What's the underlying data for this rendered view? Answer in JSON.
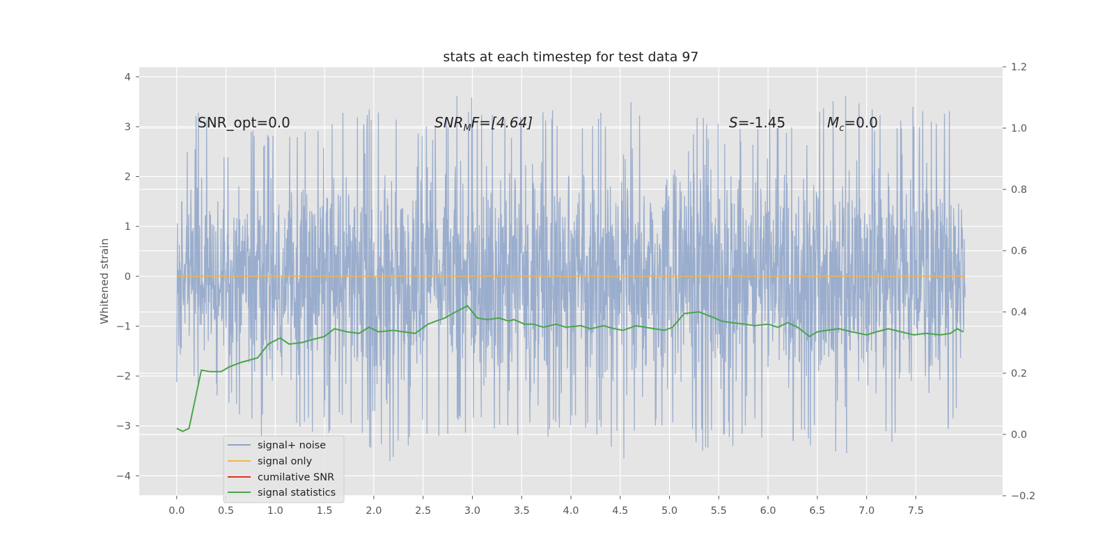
{
  "chart_data": {
    "type": "line",
    "title": "stats at each timestep for test data 97",
    "xlabel": "",
    "ylabel": "Whitened strain",
    "y2label": "",
    "xlim": [
      -0.38,
      8.38
    ],
    "ylim": [
      -4.4,
      4.2
    ],
    "y2lim": [
      -0.2,
      1.2
    ],
    "x_ticks": [
      "0.0",
      "0.5",
      "1.0",
      "1.5",
      "2.0",
      "2.5",
      "3.0",
      "3.5",
      "4.0",
      "4.5",
      "5.0",
      "5.5",
      "6.0",
      "6.5",
      "7.0",
      "7.5"
    ],
    "y_ticks": [
      "4",
      "3",
      "2",
      "1",
      "0",
      "−1",
      "−2",
      "−3",
      "−4"
    ],
    "y2_ticks": [
      "1.2",
      "1.0",
      "0.8",
      "0.6",
      "0.4",
      "0.2",
      "0.0",
      "−0.2"
    ],
    "grid": true,
    "legend_position": "lower-left",
    "colors": {
      "signal_noise": "#8da3c9",
      "signal_only": "#f0b54a",
      "cumulative_snr": "#e0301e",
      "signal_statistics": "#4aa44a",
      "axes_bg": "#e5e5e5"
    },
    "annotations": {
      "snr_opt": "SNR_opt=0.0",
      "snr_mf_main": "SNR",
      "snr_mf_sub": "M",
      "snr_mf_rest": "F=[4.64]",
      "s_main": "S",
      "s_rest": "=-1.45",
      "mc_main": "M",
      "mc_sub": "c",
      "mc_rest": "=0.0"
    },
    "series": [
      {
        "name": "signal+ noise",
        "axis": "left",
        "x_range": [
          0.0,
          8.0
        ],
        "envelope_upper": [
          [
            0.0,
            1.9
          ],
          [
            0.2,
            3.6
          ],
          [
            0.5,
            2.6
          ],
          [
            0.8,
            3.1
          ],
          [
            1.0,
            2.9
          ],
          [
            1.4,
            3.3
          ],
          [
            1.8,
            3.5
          ],
          [
            2.2,
            3.2
          ],
          [
            2.6,
            3.1
          ],
          [
            2.9,
            3.8
          ],
          [
            3.2,
            3.3
          ],
          [
            3.5,
            3.2
          ],
          [
            4.0,
            3.5
          ],
          [
            4.3,
            3.3
          ],
          [
            4.7,
            3.7
          ],
          [
            4.8,
            3.0
          ],
          [
            5.2,
            3.3
          ],
          [
            5.6,
            3.0
          ],
          [
            6.0,
            3.5
          ],
          [
            6.4,
            3.0
          ],
          [
            6.7,
            3.8
          ],
          [
            7.0,
            3.4
          ],
          [
            7.5,
            3.5
          ],
          [
            8.0,
            3.3
          ]
        ],
        "envelope_lower": [
          [
            0.0,
            -2.2
          ],
          [
            0.2,
            -2.3
          ],
          [
            0.5,
            -2.6
          ],
          [
            0.9,
            -3.3
          ],
          [
            1.3,
            -3.3
          ],
          [
            1.7,
            -3.1
          ],
          [
            1.95,
            -4.0
          ],
          [
            2.2,
            -3.8
          ],
          [
            2.5,
            -3.1
          ],
          [
            2.7,
            -3.4
          ],
          [
            3.0,
            -3.1
          ],
          [
            3.3,
            -3.3
          ],
          [
            3.6,
            -3.9
          ],
          [
            3.9,
            -3.1
          ],
          [
            4.3,
            -3.3
          ],
          [
            4.55,
            -3.8
          ],
          [
            4.8,
            -3.3
          ],
          [
            5.2,
            -3.2
          ],
          [
            5.35,
            -3.6
          ],
          [
            5.8,
            -3.3
          ],
          [
            6.2,
            -3.3
          ],
          [
            6.7,
            -3.6
          ],
          [
            7.1,
            -3.6
          ],
          [
            7.4,
            -3.5
          ],
          [
            7.8,
            -3.3
          ],
          [
            8.0,
            -2.3
          ]
        ]
      },
      {
        "name": "signal only",
        "axis": "left",
        "x": [
          0.0,
          8.0
        ],
        "y": [
          0.0,
          0.0
        ]
      },
      {
        "name": "cumilative SNR",
        "axis": "right",
        "x": [],
        "y": []
      },
      {
        "name": "signal statistics",
        "axis": "right",
        "x": [
          0.0,
          0.06,
          0.125,
          0.25,
          0.34,
          0.45,
          0.53,
          0.65,
          0.82,
          0.93,
          1.05,
          1.14,
          1.27,
          1.38,
          1.5,
          1.6,
          1.73,
          1.85,
          1.95,
          2.05,
          2.2,
          2.3,
          2.42,
          2.55,
          2.63,
          2.72,
          2.8,
          2.95,
          3.05,
          3.15,
          3.27,
          3.37,
          3.42,
          3.53,
          3.62,
          3.72,
          3.85,
          3.95,
          4.1,
          4.2,
          4.33,
          4.44,
          4.53,
          4.66,
          4.75,
          4.85,
          4.95,
          5.03,
          5.15,
          5.3,
          5.42,
          5.53,
          5.63,
          5.77,
          5.86,
          6.0,
          6.1,
          6.2,
          6.3,
          6.42,
          6.5,
          6.6,
          6.72,
          6.85,
          7.0,
          7.1,
          7.22,
          7.35,
          7.48,
          7.6,
          7.75,
          7.85,
          7.92,
          7.98
        ],
        "y": [
          0.02,
          0.01,
          0.02,
          0.21,
          0.205,
          0.205,
          0.22,
          0.235,
          0.25,
          0.295,
          0.315,
          0.295,
          0.3,
          0.31,
          0.32,
          0.345,
          0.335,
          0.33,
          0.35,
          0.335,
          0.34,
          0.335,
          0.33,
          0.36,
          0.37,
          0.38,
          0.395,
          0.42,
          0.38,
          0.375,
          0.38,
          0.37,
          0.375,
          0.36,
          0.36,
          0.35,
          0.36,
          0.35,
          0.355,
          0.345,
          0.355,
          0.345,
          0.34,
          0.355,
          0.35,
          0.345,
          0.34,
          0.35,
          0.395,
          0.4,
          0.385,
          0.37,
          0.365,
          0.36,
          0.355,
          0.36,
          0.35,
          0.365,
          0.35,
          0.32,
          0.335,
          0.34,
          0.345,
          0.335,
          0.325,
          0.335,
          0.345,
          0.335,
          0.325,
          0.33,
          0.325,
          0.33,
          0.345,
          0.335
        ]
      }
    ]
  }
}
